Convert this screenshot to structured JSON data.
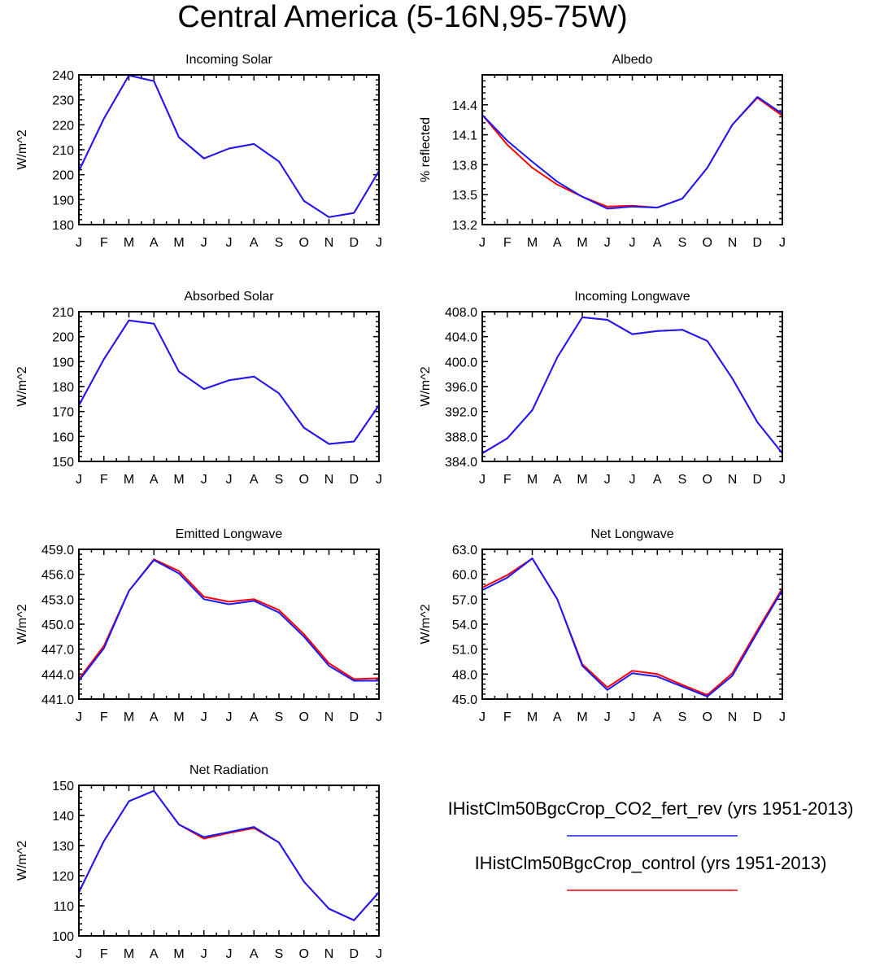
{
  "title": "Central America (5-16N,95-75W)",
  "colors": {
    "fert_rev": "#1a1aff",
    "control": "#ff0000"
  },
  "legend": [
    {
      "label": "IHistClm50BgcCrop_CO2_fert_rev (yrs 1951-2013)",
      "color": "#1a1aff"
    },
    {
      "label": "IHistClm50BgcCrop_control (yrs 1951-2013)",
      "color": "#ff0000"
    }
  ],
  "chart_data": [
    {
      "type": "line",
      "title": "Incoming Solar",
      "ylabel": "W/m^2",
      "categories": [
        "J",
        "F",
        "M",
        "A",
        "M",
        "J",
        "J",
        "A",
        "S",
        "O",
        "N",
        "D",
        "J"
      ],
      "ylim": [
        180,
        240
      ],
      "yticks": [
        "180",
        "190",
        "200",
        "210",
        "220",
        "230",
        "240"
      ],
      "series": [
        {
          "color": "#1a1aff",
          "values": [
            201.5,
            222.5,
            239.8,
            237.5,
            215,
            206.5,
            210.5,
            212.3,
            205.3,
            189.5,
            183,
            184.7,
            201.5
          ]
        },
        {
          "color": "#ff0000",
          "values": [
            201.5,
            222.5,
            239.8,
            237.5,
            215,
            206.5,
            210.5,
            212.3,
            205.3,
            189.5,
            183,
            184.7,
            201.5
          ]
        }
      ]
    },
    {
      "type": "line",
      "title": "Albedo",
      "ylabel": "% reflected",
      "categories": [
        "J",
        "F",
        "M",
        "A",
        "M",
        "J",
        "J",
        "A",
        "S",
        "O",
        "N",
        "D",
        "J"
      ],
      "ylim": [
        13.2,
        14.7
      ],
      "yticks": [
        "13.2",
        "13.5",
        "13.8",
        "14.1",
        "14.4"
      ],
      "series": [
        {
          "color": "#1a1aff",
          "values": [
            14.3,
            14.04,
            13.83,
            13.63,
            13.48,
            13.36,
            13.38,
            13.37,
            13.46,
            13.77,
            14.2,
            14.48,
            14.31
          ]
        },
        {
          "color": "#ff0000",
          "values": [
            14.3,
            14.0,
            13.77,
            13.6,
            13.48,
            13.38,
            13.39,
            13.37,
            13.46,
            13.77,
            14.2,
            14.47,
            14.29
          ]
        }
      ]
    },
    {
      "type": "line",
      "title": "Absorbed Solar",
      "ylabel": "W/m^2",
      "categories": [
        "J",
        "F",
        "M",
        "A",
        "M",
        "J",
        "J",
        "A",
        "S",
        "O",
        "N",
        "D",
        "J"
      ],
      "ylim": [
        150,
        210
      ],
      "yticks": [
        "150",
        "160",
        "170",
        "180",
        "190",
        "200",
        "210"
      ],
      "series": [
        {
          "color": "#1a1aff",
          "values": [
            172.5,
            191,
            206.5,
            205.2,
            186,
            179,
            182.5,
            184,
            177.3,
            163.5,
            157,
            158,
            172.5
          ]
        },
        {
          "color": "#ff0000",
          "values": [
            172.5,
            191,
            206.5,
            205.2,
            186,
            179,
            182.5,
            184,
            177.3,
            163.5,
            157,
            158,
            172.5
          ]
        }
      ]
    },
    {
      "type": "line",
      "title": "Incoming Longwave",
      "ylabel": "W/m^2",
      "categories": [
        "J",
        "F",
        "M",
        "A",
        "M",
        "J",
        "J",
        "A",
        "S",
        "O",
        "N",
        "D",
        "J"
      ],
      "ylim": [
        384,
        408
      ],
      "yticks": [
        "384.0",
        "388.0",
        "392.0",
        "396.0",
        "400.0",
        "404.0",
        "408.0"
      ],
      "series": [
        {
          "color": "#1a1aff",
          "values": [
            385.3,
            387.7,
            392.2,
            400.7,
            407.1,
            406.7,
            404.4,
            404.9,
            405.1,
            403.3,
            397.3,
            390.3,
            385.3
          ]
        },
        {
          "color": "#ff0000",
          "values": [
            385.3,
            387.7,
            392.2,
            400.7,
            407.1,
            406.7,
            404.4,
            404.9,
            405.1,
            403.3,
            397.3,
            390.3,
            385.3
          ]
        }
      ]
    },
    {
      "type": "line",
      "title": "Emitted Longwave",
      "ylabel": "W/m^2",
      "categories": [
        "J",
        "F",
        "M",
        "A",
        "M",
        "J",
        "J",
        "A",
        "S",
        "O",
        "N",
        "D",
        "J"
      ],
      "ylim": [
        441,
        459
      ],
      "yticks": [
        "441.0",
        "444.0",
        "447.0",
        "450.0",
        "453.0",
        "456.0",
        "459.0"
      ],
      "series": [
        {
          "color": "#1a1aff",
          "values": [
            443.2,
            447.1,
            454.0,
            457.7,
            456.1,
            453.0,
            452.4,
            452.8,
            451.4,
            448.5,
            445.0,
            443.2,
            443.2
          ]
        },
        {
          "color": "#ff0000",
          "values": [
            443.4,
            447.4,
            454.0,
            457.8,
            456.4,
            453.3,
            452.7,
            453.0,
            451.7,
            448.8,
            445.3,
            443.4,
            443.5
          ]
        }
      ]
    },
    {
      "type": "line",
      "title": "Net Longwave",
      "ylabel": "W/m^2",
      "categories": [
        "J",
        "F",
        "M",
        "A",
        "M",
        "J",
        "J",
        "A",
        "S",
        "O",
        "N",
        "D",
        "J"
      ],
      "ylim": [
        45,
        63
      ],
      "yticks": [
        "45.0",
        "48.0",
        "51.0",
        "54.0",
        "57.0",
        "60.0",
        "63.0"
      ],
      "series": [
        {
          "color": "#1a1aff",
          "values": [
            58.1,
            59.6,
            61.9,
            57.0,
            49.0,
            46.1,
            48.1,
            47.7,
            46.5,
            45.3,
            47.8,
            53.0,
            58.1
          ]
        },
        {
          "color": "#ff0000",
          "values": [
            58.4,
            59.9,
            61.9,
            57.0,
            49.2,
            46.4,
            48.4,
            48.0,
            46.7,
            45.5,
            48.1,
            53.3,
            58.3
          ]
        }
      ]
    },
    {
      "type": "line",
      "title": "Net Radiation",
      "ylabel": "W/m^2",
      "categories": [
        "J",
        "F",
        "M",
        "A",
        "M",
        "J",
        "J",
        "A",
        "S",
        "O",
        "N",
        "D",
        "J"
      ],
      "ylim": [
        100,
        150
      ],
      "yticks": [
        "100",
        "110",
        "120",
        "130",
        "140",
        "150"
      ],
      "series": [
        {
          "color": "#1a1aff",
          "values": [
            114.5,
            131.5,
            144.7,
            148.2,
            137,
            132.8,
            134.5,
            136.2,
            131,
            118,
            109,
            105.2,
            114.5
          ]
        },
        {
          "color": "#ff0000",
          "values": [
            114.5,
            131.5,
            144.7,
            148.2,
            137,
            132.3,
            134.2,
            135.8,
            131,
            118,
            109,
            105.2,
            114.5
          ]
        }
      ]
    }
  ]
}
